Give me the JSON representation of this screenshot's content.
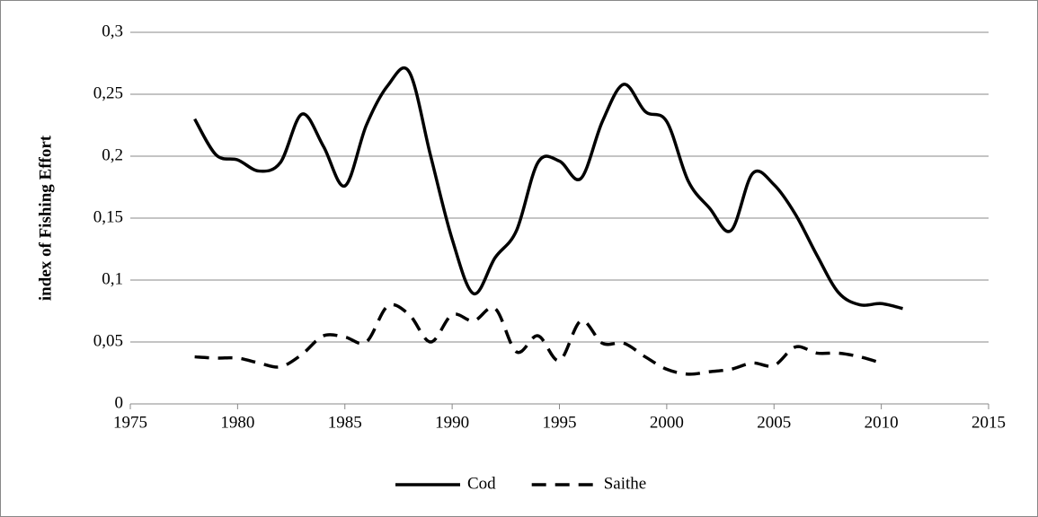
{
  "chart_data": {
    "type": "line",
    "y_label": "index of Fishing Effort",
    "x": [
      1978,
      1979,
      1980,
      1981,
      1982,
      1983,
      1984,
      1985,
      1986,
      1987,
      1988,
      1989,
      1990,
      1991,
      1992,
      1993,
      1994,
      1995,
      1996,
      1997,
      1998,
      1999,
      2000,
      2001,
      2002,
      2003,
      2004,
      2005,
      2006,
      2007,
      2008,
      2009,
      2010,
      2011
    ],
    "series": [
      {
        "name": "Cod",
        "color": "#000000",
        "line_style": "solid",
        "values": [
          0.23,
          0.201,
          0.197,
          0.188,
          0.195,
          0.234,
          0.208,
          0.176,
          0.225,
          0.257,
          0.268,
          0.2,
          0.133,
          0.089,
          0.118,
          0.14,
          0.195,
          0.196,
          0.182,
          0.228,
          0.258,
          0.236,
          0.228,
          0.18,
          0.158,
          0.14,
          0.186,
          0.177,
          0.153,
          0.12,
          0.09,
          0.08,
          0.081,
          0.077
        ]
      },
      {
        "name": "Saithe",
        "color": "#000000",
        "line_style": "dashed",
        "values": [
          0.038,
          0.037,
          0.037,
          0.033,
          0.03,
          0.04,
          0.055,
          0.054,
          0.05,
          0.079,
          0.072,
          0.05,
          0.072,
          0.067,
          0.077,
          0.042,
          0.055,
          0.035,
          0.067,
          0.049,
          0.049,
          0.038,
          0.028,
          0.024,
          0.026,
          0.028,
          0.033,
          0.031,
          0.046,
          0.041,
          0.041,
          0.038,
          0.033,
          null
        ]
      }
    ],
    "xlim": [
      1975,
      2015
    ],
    "xticks": [
      1975,
      1980,
      1985,
      1990,
      1995,
      2000,
      2005,
      2010,
      2015
    ],
    "ylim": [
      0,
      0.3
    ],
    "yticks": [
      0,
      {
        "value": 0.05,
        "label": "0,05"
      },
      {
        "value": 0.1,
        "label": "0,1"
      },
      {
        "value": 0.15,
        "label": "0,15"
      },
      {
        "value": 0.2,
        "label": "0,2"
      },
      {
        "value": 0.25,
        "label": "0,25"
      },
      {
        "value": 0.3,
        "label": "0,3"
      }
    ],
    "grid": true,
    "legend": "bottom"
  }
}
